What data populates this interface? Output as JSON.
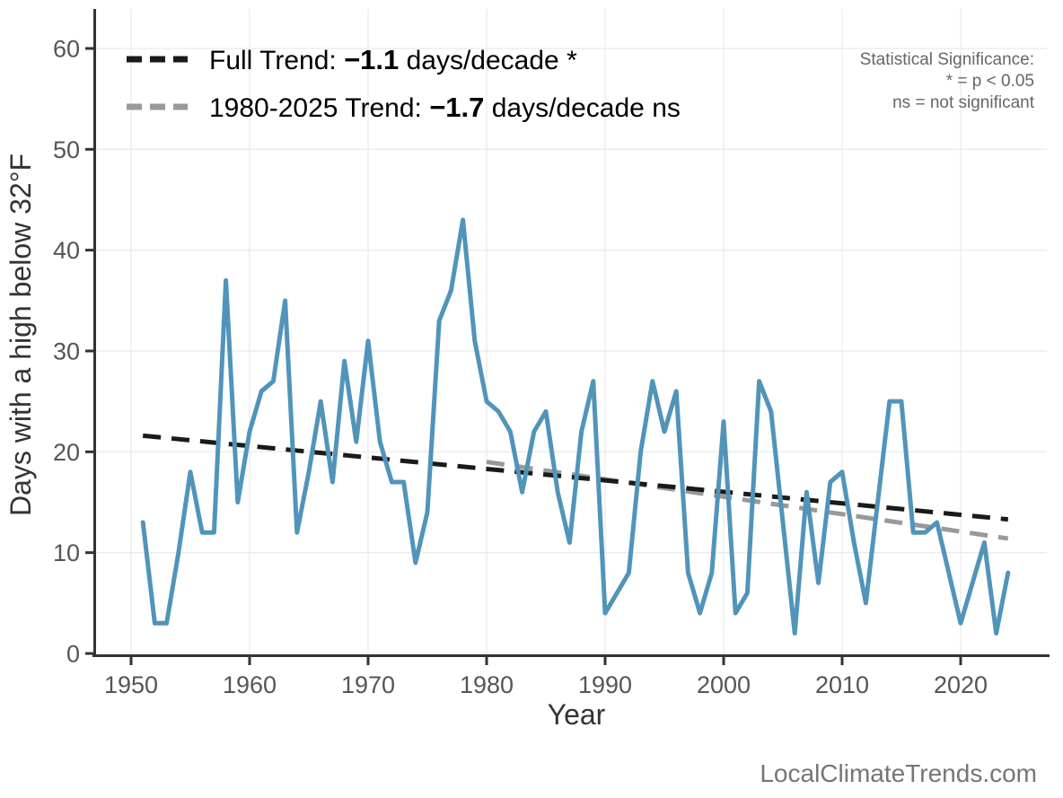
{
  "legend": {
    "items": [
      {
        "prefix": "Full Trend: ",
        "value": "−1.1",
        "suffix": " days/decade *",
        "color": "#1a1a1a"
      },
      {
        "prefix": "1980-2025 Trend: ",
        "value": "−1.7",
        "suffix": " days/decade ns",
        "color": "#999999"
      }
    ]
  },
  "significance_note": {
    "line1": "Statistical Significance:",
    "line2": "* = p < 0.05",
    "line3": "ns = not significant"
  },
  "watermark": "LocalClimateTrends.com",
  "axes": {
    "x_label": "Year",
    "y_label": "Days with a high below 32°F",
    "x_ticks": [
      1950,
      1960,
      1970,
      1980,
      1990,
      2000,
      2010,
      2020
    ],
    "y_ticks": [
      0,
      10,
      20,
      30,
      40,
      50,
      60
    ]
  },
  "colors": {
    "series": "#5194BA",
    "full_trend": "#1a1a1a",
    "recent_trend": "#999999",
    "gridline": "#ebebeb",
    "axis": "#333333"
  },
  "chart_data": {
    "type": "line",
    "title": "",
    "xlabel": "Year",
    "ylabel": "Days with a high below 32°F",
    "xlim": [
      1947,
      2027
    ],
    "ylim": [
      0,
      62
    ],
    "grid": true,
    "legend_position": "top-left",
    "years": [
      1951,
      1952,
      1953,
      1954,
      1955,
      1956,
      1957,
      1958,
      1959,
      1960,
      1961,
      1962,
      1963,
      1964,
      1965,
      1966,
      1967,
      1968,
      1969,
      1970,
      1971,
      1972,
      1973,
      1974,
      1975,
      1976,
      1977,
      1978,
      1979,
      1980,
      1981,
      1982,
      1983,
      1984,
      1985,
      1986,
      1987,
      1988,
      1989,
      1990,
      1991,
      1992,
      1993,
      1994,
      1995,
      1996,
      1997,
      1998,
      1999,
      2000,
      2001,
      2002,
      2003,
      2004,
      2005,
      2006,
      2007,
      2008,
      2009,
      2010,
      2011,
      2012,
      2013,
      2014,
      2015,
      2016,
      2017,
      2018,
      2019,
      2020,
      2021,
      2022,
      2023,
      2024
    ],
    "values": [
      13,
      3,
      3,
      10,
      18,
      12,
      12,
      37,
      15,
      22,
      26,
      27,
      35,
      12,
      18,
      25,
      17,
      29,
      21,
      31,
      21,
      17,
      17,
      9,
      14,
      33,
      36,
      43,
      31,
      25,
      24,
      22,
      16,
      22,
      24,
      16,
      11,
      22,
      27,
      4,
      6,
      8,
      20,
      27,
      22,
      26,
      8,
      4,
      8,
      23,
      4,
      6,
      27,
      24,
      13,
      2,
      16,
      7,
      17,
      18,
      11,
      5,
      15,
      25,
      25,
      12,
      12,
      13,
      8,
      3,
      7,
      11,
      2,
      8
    ],
    "trend_lines": [
      {
        "name": "Full Trend",
        "rate_per_decade": -1.1,
        "significance": "*",
        "x_start": 1951,
        "y_start": 21.6,
        "x_end": 2024,
        "y_end": 13.3,
        "color": "#1a1a1a",
        "dashed": true
      },
      {
        "name": "1980-2025 Trend",
        "rate_per_decade": -1.7,
        "significance": "ns",
        "x_start": 1980,
        "y_start": 19.0,
        "x_end": 2024,
        "y_end": 11.4,
        "color": "#999999",
        "dashed": true
      }
    ]
  }
}
